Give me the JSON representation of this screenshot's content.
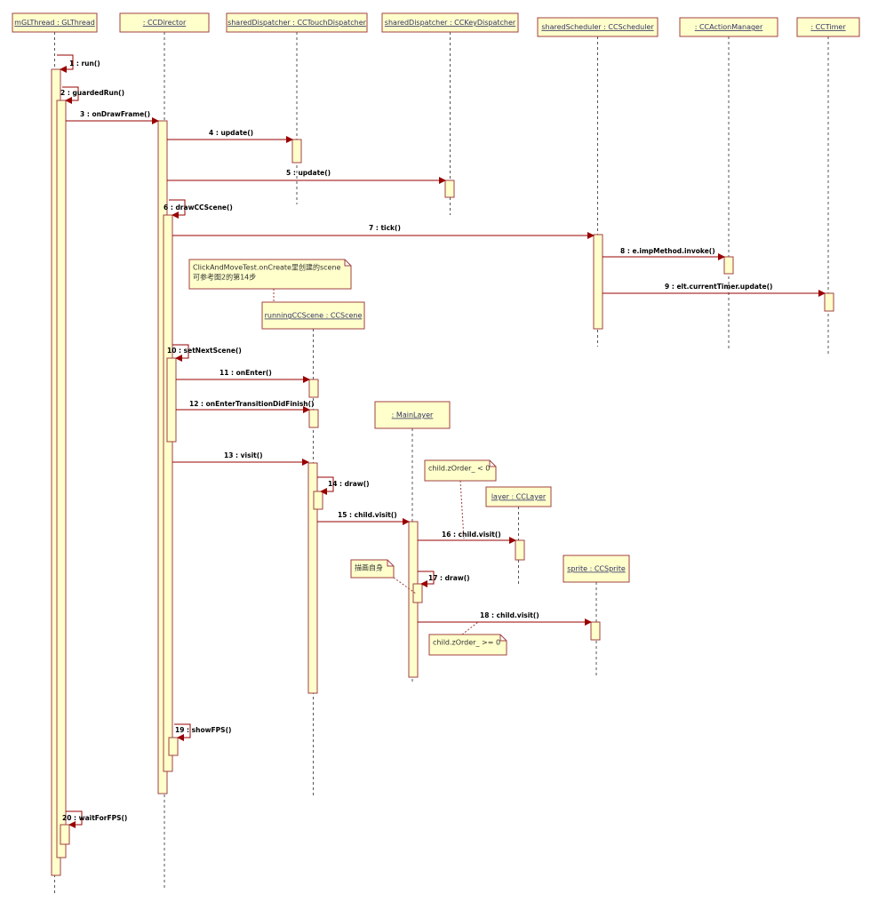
{
  "lifelines": [
    "mGLThread : GLThread",
    ": CCDirector",
    "sharedDispatcher : CCTouchDispatcher",
    "sharedDispatcher : CCKeyDispatcher",
    "sharedScheduler : CCScheduler",
    ": CCActionManager",
    ": CCTimer",
    "runningCCScene   : CCScene",
    ": MainLayer",
    "layer : CCLayer",
    "sprite : CCSprite"
  ],
  "messages": [
    "1 : run()",
    "2 : guardedRun()",
    "3 : onDrawFrame()",
    "4 : update()",
    "5 : update()",
    "6 : drawCCScene()",
    "7 : tick()",
    "8 : e.impMethod.invoke()",
    "9 : elt.currentTimer.update()",
    "10 : setNextScene()",
    "11 : onEnter()",
    "12 : onEnterTransitionDidFinish()",
    "13 : visit()",
    "14 : draw()",
    "15 : child.visit()",
    "16 : child.visit()",
    "17 : draw()",
    "18 : child.visit()",
    "19 : showFPS()",
    "20 : waitForFPS()"
  ],
  "notes": [
    {
      "lines": [
        "ClickAndMoveTest.onCreate里创建的scene",
        "可参考图2的第14步"
      ]
    },
    {
      "lines": [
        "child.zOrder_ < 0"
      ]
    },
    {
      "lines": [
        "描画自身"
      ]
    },
    {
      "lines": [
        "child.zOrder_ >= 0"
      ]
    }
  ]
}
